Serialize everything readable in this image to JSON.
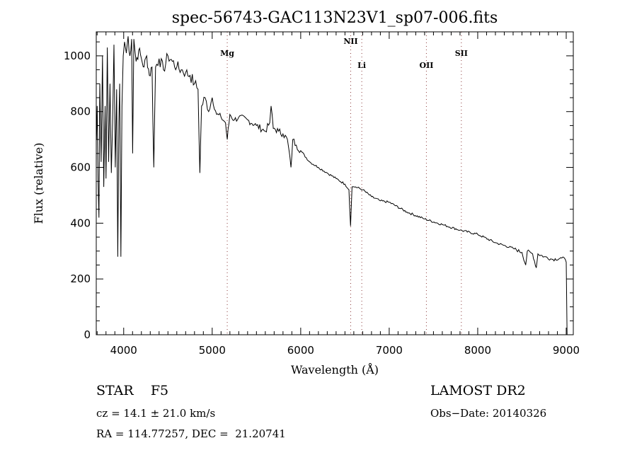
{
  "chart_data": {
    "type": "line",
    "title": "spec-56743-GAC113N23V1_sp07-006.fits",
    "xlabel": "Wavelength (Å)",
    "ylabel": "Flux (relative)",
    "xlim": [
      3690,
      9080
    ],
    "ylim": [
      0,
      1086
    ],
    "xticks": [
      4000,
      5000,
      6000,
      7000,
      8000,
      9000
    ],
    "yticks": [
      0,
      200,
      400,
      600,
      800,
      1000
    ],
    "grid": false,
    "line_color": "#000000",
    "marker_color": "#8b3a3a",
    "lines": [
      {
        "label": "Mg",
        "wavelength": 5170,
        "label_level": 1
      },
      {
        "label": "NII",
        "wavelength": 6565,
        "label_level": 0
      },
      {
        "label": "Li",
        "wavelength": 6690,
        "label_level": 2
      },
      {
        "label": "OII",
        "wavelength": 7420,
        "label_level": 2
      },
      {
        "label": "SII",
        "wavelength": 7815,
        "label_level": 1
      }
    ],
    "series": [
      {
        "name": "flux",
        "x": [
          3692,
          3700,
          3710,
          3720,
          3730,
          3745,
          3760,
          3775,
          3790,
          3800,
          3815,
          3830,
          3845,
          3860,
          3875,
          3890,
          3905,
          3920,
          3933,
          3945,
          3955,
          3968,
          3980,
          3995,
          4010,
          4030,
          4050,
          4070,
          4090,
          4101,
          4115,
          4140,
          4170,
          4200,
          4230,
          4260,
          4290,
          4320,
          4340,
          4360,
          4400,
          4450,
          4500,
          4550,
          4600,
          4650,
          4700,
          4750,
          4800,
          4840,
          4861,
          4880,
          4920,
          4960,
          5000,
          5050,
          5100,
          5150,
          5170,
          5200,
          5250,
          5300,
          5400,
          5500,
          5600,
          5650,
          5665,
          5690,
          5750,
          5800,
          5850,
          5890,
          5910,
          5950,
          6000,
          6100,
          6200,
          6300,
          6400,
          6500,
          6545,
          6563,
          6580,
          6620,
          6700,
          6800,
          6900,
          7000,
          7200,
          7400,
          7600,
          7800,
          8000,
          8200,
          8400,
          8500,
          8542,
          8560,
          8620,
          8662,
          8680,
          8750,
          8850,
          8950,
          8990,
          9000,
          9010
        ],
        "y": [
          700,
          820,
          560,
          420,
          900,
          620,
          1000,
          530,
          820,
          560,
          1030,
          620,
          900,
          580,
          760,
          1040,
          600,
          880,
          280,
          760,
          900,
          280,
          820,
          1000,
          1050,
          1010,
          1070,
          1000,
          1060,
          650,
          1060,
          980,
          1020,
          990,
          960,
          1000,
          930,
          960,
          600,
          960,
          990,
          950,
          1000,
          980,
          960,
          950,
          940,
          930,
          900,
          880,
          580,
          820,
          850,
          800,
          850,
          790,
          780,
          760,
          700,
          790,
          770,
          780,
          770,
          750,
          730,
          760,
          820,
          740,
          730,
          720,
          700,
          600,
          700,
          680,
          660,
          620,
          600,
          580,
          560,
          540,
          520,
          390,
          530,
          530,
          520,
          495,
          480,
          475,
          440,
          415,
          395,
          375,
          360,
          330,
          310,
          295,
          250,
          300,
          290,
          240,
          290,
          280,
          270,
          275,
          270,
          260,
          0
        ]
      }
    ]
  },
  "info": {
    "class_label": "STAR    F5",
    "survey": "LAMOST DR2",
    "cz": "cz = 14.1 ± 21.0 km/s",
    "obs_date": "Obs−Date: 20140326",
    "coords": "RA = 114.77257, DEC =  21.20741"
  }
}
